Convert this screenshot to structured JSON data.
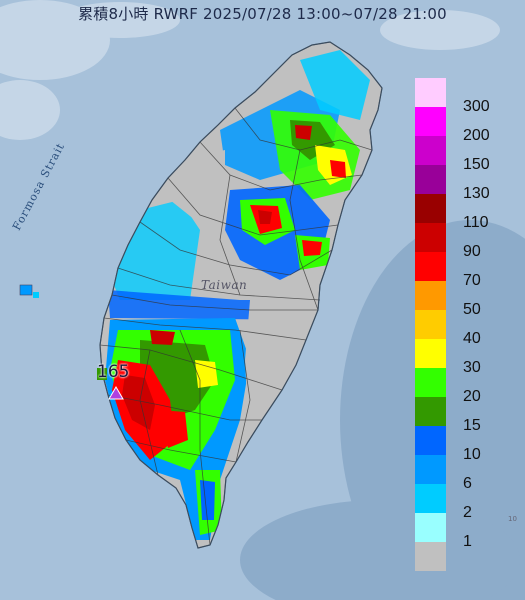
{
  "title": "累積8小時 RWRF 2025/07/28 13:00~07/28 21:00",
  "strait_label": "Formosa Strait",
  "island_label": "Taiwan",
  "station_value": "165",
  "corner_text": "10",
  "legend": {
    "items": [
      {
        "label": "300",
        "color": "#ffccff"
      },
      {
        "label": "200",
        "color": "#ff00ff"
      },
      {
        "label": "150",
        "color": "#cc00cc"
      },
      {
        "label": "130",
        "color": "#990099"
      },
      {
        "label": "110",
        "color": "#990000"
      },
      {
        "label": "90",
        "color": "#cc0000"
      },
      {
        "label": "70",
        "color": "#ff0000"
      },
      {
        "label": "50",
        "color": "#ff9900"
      },
      {
        "label": "40",
        "color": "#ffcc00"
      },
      {
        "label": "30",
        "color": "#ffff00"
      },
      {
        "label": "20",
        "color": "#33ff00"
      },
      {
        "label": "15",
        "color": "#339900"
      },
      {
        "label": "10",
        "color": "#0066ff"
      },
      {
        "label": "6",
        "color": "#0099ff"
      },
      {
        "label": "2",
        "color": "#00ccff"
      },
      {
        "label": "1",
        "color": "#99ffff"
      },
      {
        "label": "",
        "color": "#c0c0c0"
      }
    ]
  }
}
